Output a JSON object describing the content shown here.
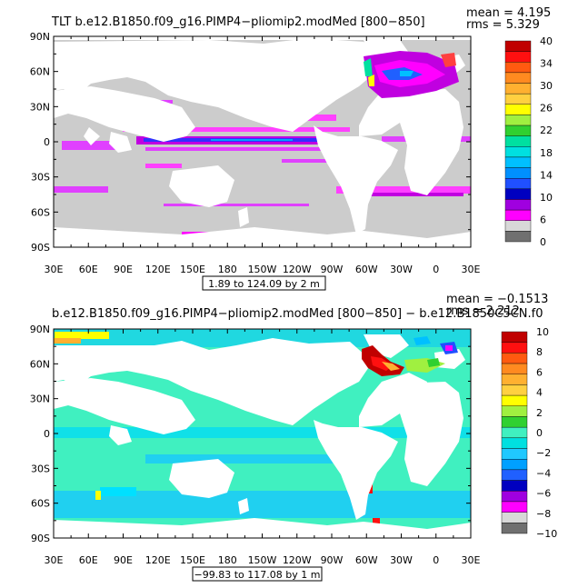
{
  "chart_data": [
    {
      "type": "heatmap",
      "title": "TLT b.e12.B1850.f09_g16.PIMP4−pliomip2.modMed [800−850]",
      "stats": [
        "mean = 4.195",
        "rms = 5.329"
      ],
      "subtitle": "1.89 to 124.09 by 2 m",
      "x_ticks": [
        "30E",
        "60E",
        "90E",
        "120E",
        "150E",
        "180",
        "150W",
        "120W",
        "90W",
        "60W",
        "30W",
        "0",
        "30E"
      ],
      "y_ticks": [
        "90N",
        "60N",
        "30N",
        "0",
        "30S",
        "60S",
        "90S"
      ],
      "xlim": [
        30,
        390
      ],
      "ylim": [
        -90,
        90
      ],
      "colorbar": {
        "labels": [
          "40",
          "34",
          "30",
          "26",
          "22",
          "18",
          "14",
          "10",
          "6",
          "0"
        ],
        "colors": [
          "#c00000",
          "#ff1010",
          "#ff5a10",
          "#ff8a20",
          "#ffb030",
          "#ffd040",
          "#ffff00",
          "#a0f040",
          "#30d030",
          "#00e0a0",
          "#00e0e0",
          "#00c0ff",
          "#0090ff",
          "#2050ff",
          "#0000c0",
          "#a000e0",
          "#ff00ff",
          "#d8d8d8",
          "#707070"
        ]
      },
      "land_color": "#ffffff",
      "ocean_base_color": "#cccccc"
    },
    {
      "type": "heatmap",
      "title": "b.e12.B1850.f09_g16.PIMP4−pliomip2.modMed [800−850] − b.e12.B1850C5CN.f0",
      "stats": [
        "mean = −0.1513",
        "rms = 2.212"
      ],
      "subtitle": "−99.83 to 117.08 by 1 m",
      "x_ticks": [
        "30E",
        "60E",
        "90E",
        "120E",
        "150E",
        "180",
        "150W",
        "120W",
        "90W",
        "60W",
        "30W",
        "0",
        "30E"
      ],
      "y_ticks": [
        "90N",
        "60N",
        "30N",
        "0",
        "30S",
        "60S",
        "90S"
      ],
      "xlim": [
        30,
        390
      ],
      "ylim": [
        -90,
        90
      ],
      "colorbar": {
        "labels": [
          "10",
          "8",
          "6",
          "4",
          "2",
          "0",
          "−2",
          "−4",
          "−6",
          "−8",
          "−10"
        ],
        "colors": [
          "#c00000",
          "#ff1010",
          "#ff5a10",
          "#ff8a20",
          "#ffb030",
          "#ffd040",
          "#ffff00",
          "#a0f040",
          "#30d030",
          "#40f0c0",
          "#00e0e0",
          "#20c8ff",
          "#00a0ff",
          "#2060ff",
          "#0000c0",
          "#a000e0",
          "#ff00ff",
          "#d8d8d8",
          "#707070"
        ]
      },
      "land_color": "#ffffff",
      "ocean_base_color": "#40f0c0"
    }
  ]
}
